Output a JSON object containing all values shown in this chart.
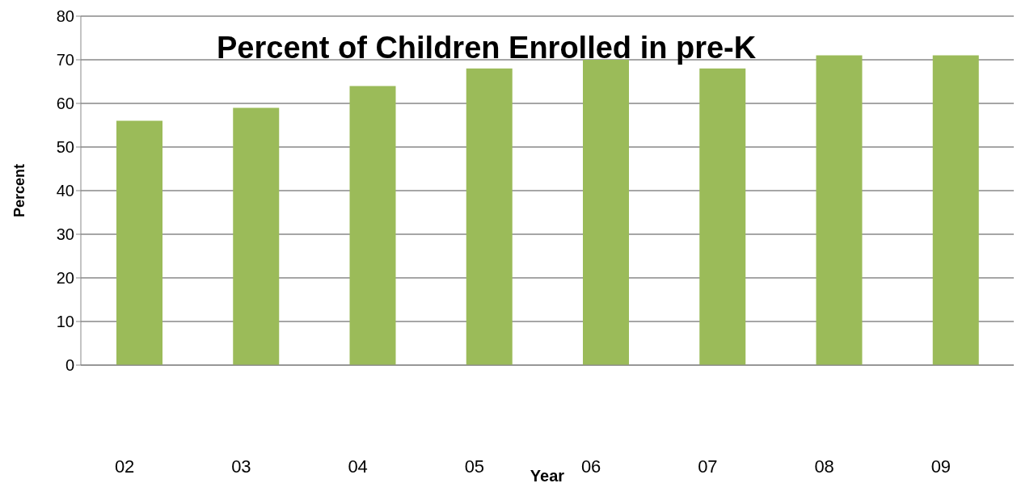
{
  "chart_data": {
    "type": "bar",
    "title": "Percent of Children Enrolled in pre-K",
    "xlabel": "Year",
    "ylabel": "Percent",
    "categories": [
      "02",
      "03",
      "04",
      "05",
      "06",
      "07",
      "08",
      "09"
    ],
    "values": [
      56,
      59,
      64,
      68,
      70,
      68,
      71,
      71
    ],
    "color": "#9bbb59",
    "ylim": [
      0,
      80
    ],
    "yticks": [
      0,
      10,
      20,
      30,
      40,
      50,
      60,
      70,
      80
    ],
    "grid": "y"
  }
}
